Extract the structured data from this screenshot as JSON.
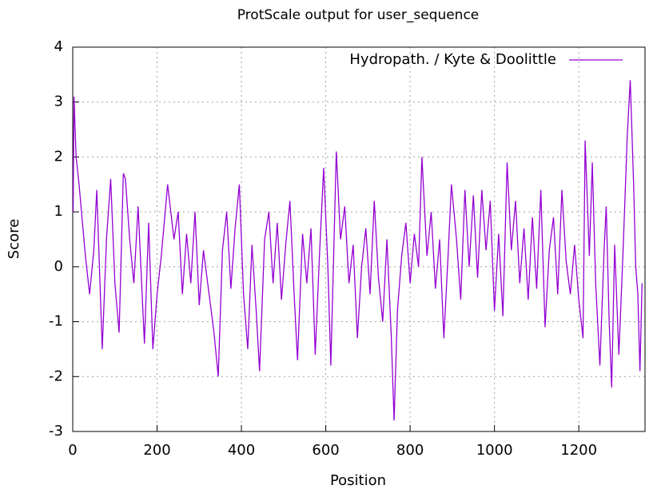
{
  "chart_data": {
    "type": "line",
    "title": "ProtScale output for user_sequence",
    "x_label": "Position",
    "y_label": "Score",
    "xlim": [
      0,
      1357
    ],
    "ylim": [
      -3,
      4
    ],
    "xticks": [
      0,
      200,
      400,
      600,
      800,
      1000,
      1200
    ],
    "yticks": [
      -3,
      -2,
      -1,
      0,
      1,
      2,
      3,
      4
    ],
    "grid": true,
    "legend": "upper right",
    "x": [
      1,
      3,
      8,
      15,
      30,
      40,
      50,
      57,
      70,
      80,
      90,
      100,
      110,
      120,
      125,
      135,
      145,
      155,
      170,
      180,
      190,
      200,
      210,
      225,
      240,
      250,
      260,
      270,
      280,
      290,
      300,
      310,
      320,
      335,
      345,
      355,
      365,
      375,
      385,
      395,
      405,
      415,
      425,
      435,
      443,
      455,
      465,
      475,
      485,
      495,
      505,
      515,
      525,
      533,
      545,
      555,
      565,
      575,
      585,
      595,
      605,
      612,
      625,
      635,
      645,
      655,
      665,
      675,
      685,
      695,
      705,
      715,
      725,
      735,
      745,
      755,
      762,
      770,
      780,
      790,
      800,
      810,
      820,
      828,
      840,
      850,
      860,
      870,
      880,
      890,
      898,
      910,
      920,
      930,
      940,
      950,
      960,
      970,
      980,
      990,
      1000,
      1010,
      1020,
      1030,
      1040,
      1050,
      1060,
      1070,
      1080,
      1090,
      1100,
      1110,
      1120,
      1130,
      1140,
      1150,
      1160,
      1170,
      1180,
      1190,
      1200,
      1210,
      1215,
      1225,
      1232,
      1240,
      1250,
      1260,
      1265,
      1272,
      1278,
      1285,
      1295,
      1305,
      1315,
      1322,
      1330,
      1335,
      1340,
      1345,
      1350
    ],
    "series": [
      {
        "name": "Hydropath. / Kyte & Doolittle",
        "color": "#9400d3",
        "values": [
          1.0,
          3.1,
          2.0,
          1.5,
          0.2,
          -0.5,
          0.3,
          1.4,
          -1.5,
          0.5,
          1.6,
          -0.3,
          -1.2,
          1.7,
          1.6,
          0.5,
          -0.3,
          1.1,
          -1.4,
          0.8,
          -1.5,
          -0.5,
          0.2,
          1.5,
          0.5,
          1.0,
          -0.5,
          0.6,
          -0.3,
          1.0,
          -0.7,
          0.3,
          -0.3,
          -1.2,
          -2.0,
          0.3,
          1.0,
          -0.4,
          0.7,
          1.5,
          -0.5,
          -1.5,
          0.4,
          -0.8,
          -1.9,
          0.5,
          1.0,
          -0.3,
          0.8,
          -0.6,
          0.4,
          1.2,
          -0.5,
          -1.7,
          0.6,
          -0.3,
          0.7,
          -1.6,
          0.2,
          1.8,
          0.0,
          -1.8,
          2.1,
          0.5,
          1.1,
          -0.3,
          0.4,
          -1.3,
          0.0,
          0.7,
          -0.5,
          1.2,
          -0.2,
          -1.0,
          0.5,
          -1.2,
          -2.8,
          -0.8,
          0.2,
          0.8,
          -0.3,
          0.6,
          0.0,
          2.0,
          0.2,
          1.0,
          -0.4,
          0.5,
          -1.3,
          0.2,
          1.5,
          0.5,
          -0.6,
          1.4,
          0.0,
          1.3,
          -0.2,
          1.4,
          0.3,
          1.2,
          -0.8,
          0.6,
          -0.9,
          1.9,
          0.3,
          1.2,
          -0.3,
          0.7,
          -0.6,
          0.9,
          -0.4,
          1.4,
          -1.1,
          0.3,
          0.9,
          -0.5,
          1.4,
          0.1,
          -0.5,
          0.4,
          -0.6,
          -1.3,
          2.3,
          0.2,
          1.9,
          -0.3,
          -1.8,
          0.3,
          1.1,
          -1.0,
          -2.2,
          0.4,
          -1.6,
          0.3,
          2.4,
          3.4,
          1.5,
          0.0,
          -0.5,
          -1.9,
          -0.3
        ]
      }
    ]
  }
}
